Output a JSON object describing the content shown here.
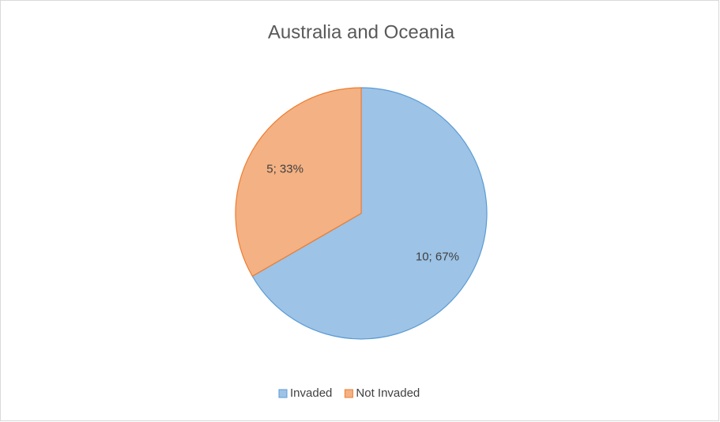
{
  "chart_data": {
    "type": "pie",
    "title": "Australia and Oceania",
    "categories": [
      "Invaded",
      "Not Invaded"
    ],
    "values": [
      10,
      5
    ],
    "value_labels": [
      "10; 67%",
      "5; 33%"
    ],
    "colors": [
      "#9dc3e6",
      "#f4b183"
    ],
    "edge_colors": [
      "#5b9bd5",
      "#ed7d31"
    ],
    "legend": "bottom"
  }
}
